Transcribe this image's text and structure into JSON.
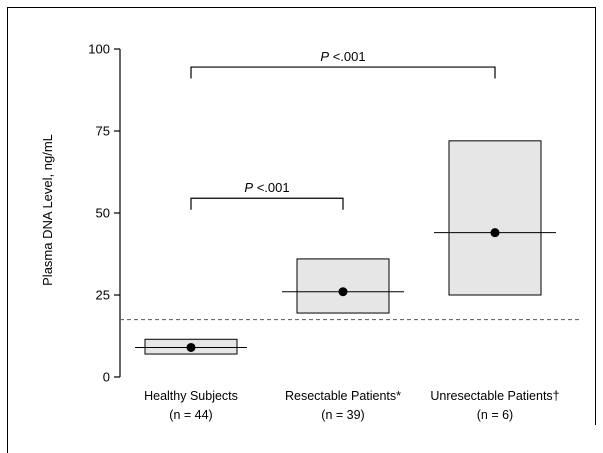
{
  "chart_data": {
    "type": "box",
    "ylabel": "Plasma DNA Level, ng/mL",
    "ylim": [
      0,
      100
    ],
    "yticks": [
      0,
      25,
      50,
      75,
      100
    ],
    "categories": [
      {
        "name": "Healthy Subjects",
        "n_label": "(n = 44)",
        "box_low": 7,
        "box_high": 11.5,
        "point": 9
      },
      {
        "name": "Resectable Patients*",
        "n_label": "(n = 39)",
        "box_low": 19.5,
        "box_high": 36,
        "point": 26
      },
      {
        "name": "Unresectable Patients†",
        "n_label": "(n = 6)",
        "box_low": 25,
        "box_high": 72,
        "point": 44
      }
    ],
    "reference_line": {
      "y": 17.5,
      "style": "dashed"
    },
    "comparisons": [
      {
        "from": 0,
        "to": 1,
        "label_prefix": "P",
        "label_value": " <.001",
        "bracket_y": 54.5,
        "tick_drop": 3.5
      },
      {
        "from": 0,
        "to": 2,
        "label_prefix": "P",
        "label_value": " <.001",
        "bracket_y": 94.5,
        "tick_drop": 3.5
      }
    ],
    "colors": {
      "box_fill": "#e6e6e6",
      "stroke": "#000000",
      "dashed": "#555555"
    }
  }
}
